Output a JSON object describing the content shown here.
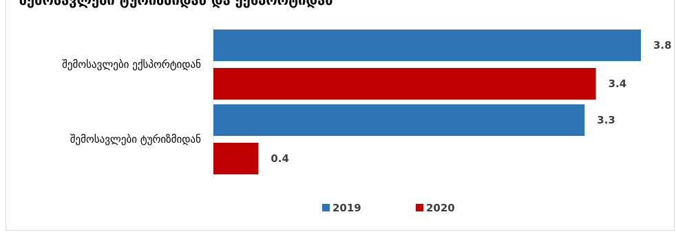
{
  "chart_data": {
    "type": "bar",
    "orientation": "horizontal",
    "title": "შემოსავლები ტურიზმიდან და ექსპორტიდან",
    "categories": [
      "შემოსავლები ექსპორტიდან",
      "შემოსავლები ტურიზმიდან"
    ],
    "series": [
      {
        "name": "2019",
        "color": "#2e75b6",
        "values": [
          3.8,
          3.3
        ]
      },
      {
        "name": "2020",
        "color": "#c00000",
        "values": [
          3.4,
          0.4
        ]
      }
    ],
    "xlim": [
      0,
      3.8
    ],
    "legend": "bottom",
    "grid": false
  }
}
